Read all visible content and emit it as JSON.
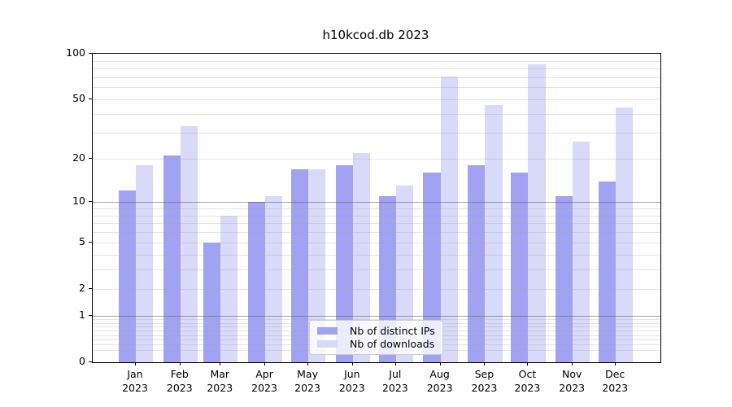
{
  "title": "h10kcod.db 2023",
  "chart_data": {
    "type": "bar",
    "title": "h10kcod.db 2023",
    "categories": [
      "Jan",
      "Feb",
      "Mar",
      "Apr",
      "May",
      "Jun",
      "Jul",
      "Aug",
      "Sep",
      "Oct",
      "Nov",
      "Dec"
    ],
    "x_year": "2023",
    "x_tick_labels": [
      "Jan 2023",
      "Feb 2023",
      "Mar 2023",
      "Apr 2023",
      "May 2023",
      "Jun 2023",
      "Jul 2023",
      "Aug 2023",
      "Sep 2023",
      "Oct 2023",
      "Nov 2023",
      "Dec 2023"
    ],
    "series": [
      {
        "name": "Nb of distinct IPs",
        "color": "#a2a2f2",
        "values": [
          12,
          21,
          5,
          10,
          17,
          18,
          11,
          16,
          18,
          16,
          11,
          14
        ]
      },
      {
        "name": "Nb of downloads",
        "color": "#d9d9f9",
        "values": [
          18,
          33,
          8,
          11,
          17,
          22,
          13,
          71,
          46,
          85,
          26,
          44
        ]
      }
    ],
    "y_scale": "log1p",
    "ylim": [
      0,
      100
    ],
    "y_ticks": [
      0,
      1,
      2,
      5,
      10,
      20,
      50,
      100
    ],
    "y_tick_labels": [
      "0",
      "1",
      "2",
      "5",
      "10",
      "20",
      "50",
      "100"
    ],
    "grid": true,
    "legend_position": "lower center"
  },
  "legend": {
    "items": [
      "Nb of distinct IPs",
      "Nb of downloads"
    ]
  }
}
